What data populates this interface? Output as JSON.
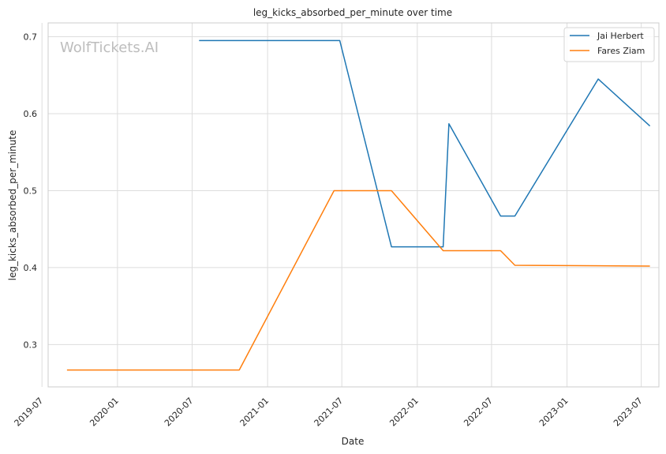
{
  "chart_data": {
    "type": "line",
    "title": "leg_kicks_absorbed_per_minute over time",
    "xlabel": "Date",
    "ylabel": "leg_kicks_absorbed_per_minute",
    "watermark": "WolfTickets.AI",
    "xlim": [
      "2019-07-16",
      "2023-08-13"
    ],
    "ylim": [
      0.245,
      0.718
    ],
    "x_ticks": [
      "2019-07",
      "2020-01",
      "2020-07",
      "2021-01",
      "2021-07",
      "2022-01",
      "2022-07",
      "2023-01",
      "2023-07"
    ],
    "y_ticks": [
      0.3,
      0.4,
      0.5,
      0.6,
      0.7
    ],
    "y_tick_labels": [
      "0.3",
      "0.4",
      "0.5",
      "0.6",
      "0.7"
    ],
    "grid": true,
    "legend_position": "top-right",
    "series": [
      {
        "name": "Jai Herbert",
        "color": "#1f77b4",
        "points": [
          {
            "x": "2020-07-18",
            "y": 0.695
          },
          {
            "x": "2021-06-26",
            "y": 0.695
          },
          {
            "x": "2021-10-30",
            "y": 0.427
          },
          {
            "x": "2022-03-05",
            "y": 0.427
          },
          {
            "x": "2022-03-19",
            "y": 0.587
          },
          {
            "x": "2022-07-23",
            "y": 0.467
          },
          {
            "x": "2022-08-27",
            "y": 0.467
          },
          {
            "x": "2023-03-18",
            "y": 0.645
          },
          {
            "x": "2023-07-22",
            "y": 0.584
          }
        ]
      },
      {
        "name": "Fares Ziam",
        "color": "#ff7f0e",
        "points": [
          {
            "x": "2019-08-31",
            "y": 0.267
          },
          {
            "x": "2020-10-24",
            "y": 0.267
          },
          {
            "x": "2021-06-12",
            "y": 0.5
          },
          {
            "x": "2021-10-30",
            "y": 0.5
          },
          {
            "x": "2022-03-05",
            "y": 0.422
          },
          {
            "x": "2022-07-23",
            "y": 0.422
          },
          {
            "x": "2022-08-27",
            "y": 0.403
          },
          {
            "x": "2023-07-22",
            "y": 0.402
          }
        ]
      }
    ]
  }
}
